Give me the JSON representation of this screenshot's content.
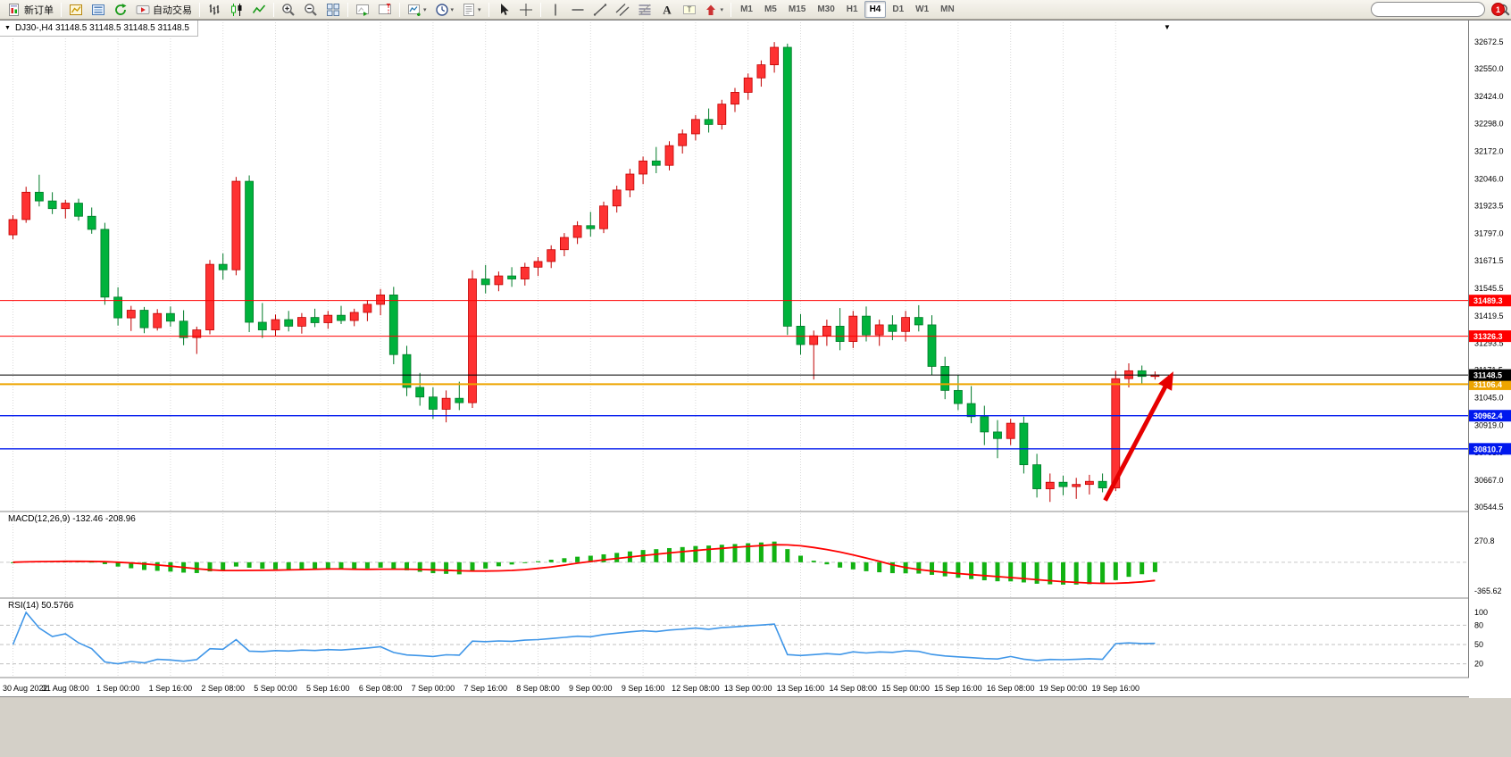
{
  "toolbar": {
    "groups": [
      {
        "items": [
          {
            "name": "new-order-button",
            "icon": "new-order",
            "label": "新订单"
          }
        ]
      },
      {
        "items": [
          {
            "name": "charts-button",
            "icon": "chart-window"
          },
          {
            "name": "market-watch-button",
            "icon": "market-watch"
          },
          {
            "name": "refresh-button",
            "icon": "refresh"
          },
          {
            "name": "auto-trading-button",
            "icon": "auto-trading",
            "label": "自动交易"
          }
        ]
      },
      {
        "items": [
          {
            "name": "bar-chart-button",
            "icon": "bar-chart"
          },
          {
            "name": "candlestick-chart-button",
            "icon": "candle-chart"
          },
          {
            "name": "line-chart-button",
            "icon": "line-chart"
          }
        ]
      },
      {
        "items": [
          {
            "name": "zoom-in-button",
            "icon": "zoom-in"
          },
          {
            "name": "zoom-out-button",
            "icon": "zoom-out"
          },
          {
            "name": "tile-wind​ows-button",
            "icon": "tile-windows"
          }
        ]
      },
      {
        "items": [
          {
            "name": "auto-scroll-button",
            "icon": "auto-scroll"
          },
          {
            "name": "chart-shift-button",
            "icon": "chart-shift"
          }
        ]
      },
      {
        "items": [
          {
            "name": "indicators-button",
            "icon": "indicators",
            "dropdown": true
          },
          {
            "name": "periods-button",
            "icon": "periods",
            "dropdown": true
          },
          {
            "name": "templates-button",
            "icon": "templates",
            "dropdown": true
          }
        ]
      },
      {
        "items": [
          {
            "name": "cursor-button",
            "icon": "cursor"
          },
          {
            "name": "crosshair-button",
            "icon": "crosshair"
          }
        ]
      },
      {
        "items": [
          {
            "name": "vertical-line-button",
            "icon": "vline"
          },
          {
            "name": "horizontal-line-button",
            "icon": "hline"
          },
          {
            "name": "trendline-button",
            "icon": "trendline"
          },
          {
            "name": "equidistant-channel-button",
            "icon": "channel"
          },
          {
            "name": "fibonacci-button",
            "icon": "fibonacci"
          },
          {
            "name": "text-button",
            "icon": "text"
          },
          {
            "name": "text-label-button",
            "icon": "text-label"
          },
          {
            "name": "arrows-button",
            "icon": "arrows",
            "dropdown": true
          }
        ]
      }
    ],
    "timeframes": [
      "M1",
      "M5",
      "M15",
      "M30",
      "H1",
      "H4",
      "D1",
      "W1",
      "MN"
    ],
    "active_timeframe": "H4",
    "notification_count": "1"
  },
  "chart": {
    "title": "DJ30-,H4 31148.5 31148.5 31148.5 31148.5",
    "collapse_icon": "▼",
    "menu_icon": "▼",
    "macd": {
      "label": "MACD(12,26,9) -132.46 -208.96"
    },
    "rsi": {
      "label": "RSI(14) 50.5766"
    },
    "colors": {
      "grid": "#d9d9d9",
      "up": "#fe3232",
      "up_stroke": "#c00000",
      "down": "#00b23c",
      "down_stroke": "#007a28",
      "macd_bar": "#12b212",
      "macd_signal": "#ff0000",
      "rsi_line": "#3f96e8",
      "axis_text": "#000000"
    }
  },
  "chart_data": {
    "type": "candlestick",
    "symbol": "DJ30-",
    "timeframe": "H4",
    "price_range": [
      30544.5,
      32672.5
    ],
    "y_axis_ticks": [
      "32672.5",
      "32550.0",
      "32424.0",
      "32298.0",
      "32172.0",
      "32046.0",
      "31923.5",
      "31797.0",
      "31671.5",
      "31545.5",
      "31419.5",
      "31293.5",
      "31171.5",
      "31045.0",
      "30919.0",
      "30793.0",
      "30667.0",
      "30544.5"
    ],
    "x_labels": [
      "30 Aug 2022",
      "31 Aug 08:00",
      "1 Sep 00:00",
      "1 Sep 16:00",
      "2 Sep 08:00",
      "5 Sep 00:00",
      "5 Sep 16:00",
      "6 Sep 08:00",
      "7 Sep 00:00",
      "7 Sep 16:00",
      "8 Sep 08:00",
      "9 Sep 00:00",
      "9 Sep 16:00",
      "12 Sep 08:00",
      "13 Sep 00:00",
      "13 Sep 16:00",
      "14 Sep 08:00",
      "15 Sep 00:00",
      "15 Sep 16:00",
      "16 Sep 08:00",
      "19 Sep 00:00",
      "19 Sep 16:00"
    ],
    "x_label_step": 4,
    "current_price": 31148.5,
    "current_price_label": "31148.5",
    "horizontal_lines": [
      {
        "label": "31489.3",
        "price": 31489.3,
        "color": "#ff0000",
        "width": 1
      },
      {
        "label": "31326.3",
        "price": 31326.3,
        "color": "#ff0000",
        "width": 1
      },
      {
        "label": "31106.4",
        "price": 31106.4,
        "color": "#eea500",
        "width": 2
      },
      {
        "label": "30962.4",
        "price": 30962.4,
        "color": "#0018ee",
        "width": 1.4
      },
      {
        "label": "30810.7",
        "price": 30810.7,
        "color": "#0018ee",
        "width": 1.4
      }
    ],
    "indicators": [
      {
        "type": "MACD",
        "params": "12,26,9",
        "display_values": "-132.46 -208.96",
        "axis": [
          "270.8",
          "-365.62"
        ]
      },
      {
        "type": "RSI",
        "params": "14",
        "display_value": "50.5766",
        "axis": [
          "100",
          "80",
          "50",
          "20"
        ],
        "levels": [
          80,
          50,
          20
        ]
      }
    ],
    "annotation_arrow": {
      "from_index": 83.2,
      "from_price": 30575,
      "to_index": 88.4,
      "to_price": 31165,
      "color": "#e60000"
    },
    "ohlc": [
      [
        31790,
        31880,
        31770,
        31860
      ],
      [
        31860,
        32010,
        31845,
        31985
      ],
      [
        31985,
        32065,
        31920,
        31945
      ],
      [
        31945,
        31985,
        31885,
        31910
      ],
      [
        31910,
        31950,
        31865,
        31935
      ],
      [
        31935,
        31955,
        31855,
        31875
      ],
      [
        31875,
        31915,
        31795,
        31815
      ],
      [
        31815,
        31845,
        31470,
        31505
      ],
      [
        31505,
        31550,
        31375,
        31410
      ],
      [
        31410,
        31465,
        31350,
        31445
      ],
      [
        31445,
        31460,
        31340,
        31365
      ],
      [
        31365,
        31450,
        31352,
        31430
      ],
      [
        31430,
        31462,
        31370,
        31395
      ],
      [
        31395,
        31445,
        31285,
        31320
      ],
      [
        31320,
        31370,
        31245,
        31355
      ],
      [
        31355,
        31675,
        31335,
        31655
      ],
      [
        31655,
        31705,
        31585,
        31630
      ],
      [
        31630,
        32055,
        31605,
        32035
      ],
      [
        32035,
        32062,
        31345,
        31390
      ],
      [
        31390,
        31478,
        31318,
        31355
      ],
      [
        31355,
        31425,
        31328,
        31402
      ],
      [
        31402,
        31442,
        31348,
        31372
      ],
      [
        31372,
        31432,
        31338,
        31412
      ],
      [
        31412,
        31452,
        31368,
        31388
      ],
      [
        31388,
        31442,
        31360,
        31422
      ],
      [
        31422,
        31465,
        31382,
        31398
      ],
      [
        31398,
        31452,
        31372,
        31435
      ],
      [
        31435,
        31492,
        31395,
        31472
      ],
      [
        31472,
        31542,
        31422,
        31515
      ],
      [
        31515,
        31552,
        31198,
        31242
      ],
      [
        31242,
        31282,
        31052,
        31092
      ],
      [
        31092,
        31158,
        31008,
        31048
      ],
      [
        31048,
        31092,
        30948,
        30992
      ],
      [
        30992,
        31078,
        30932,
        31042
      ],
      [
        31042,
        31118,
        30988,
        31022
      ],
      [
        31022,
        31628,
        30998,
        31588
      ],
      [
        31588,
        31652,
        31522,
        31562
      ],
      [
        31562,
        31622,
        31532,
        31602
      ],
      [
        31602,
        31642,
        31552,
        31588
      ],
      [
        31588,
        31662,
        31558,
        31642
      ],
      [
        31642,
        31688,
        31602,
        31668
      ],
      [
        31668,
        31742,
        31638,
        31722
      ],
      [
        31722,
        31798,
        31692,
        31778
      ],
      [
        31778,
        31852,
        31748,
        31832
      ],
      [
        31832,
        31895,
        31782,
        31818
      ],
      [
        31818,
        31942,
        31798,
        31922
      ],
      [
        31922,
        32015,
        31892,
        31995
      ],
      [
        31995,
        32092,
        31962,
        32068
      ],
      [
        32068,
        32148,
        32022,
        32128
      ],
      [
        32128,
        32192,
        32072,
        32108
      ],
      [
        32108,
        32218,
        32085,
        32198
      ],
      [
        32198,
        32272,
        32162,
        32252
      ],
      [
        32252,
        32338,
        32222,
        32318
      ],
      [
        32318,
        32368,
        32258,
        32295
      ],
      [
        32295,
        32408,
        32272,
        32388
      ],
      [
        32388,
        32462,
        32352,
        32442
      ],
      [
        32442,
        32528,
        32408,
        32508
      ],
      [
        32508,
        32588,
        32468,
        32568
      ],
      [
        32568,
        32672,
        32532,
        32648
      ],
      [
        32648,
        32665,
        31332,
        31372
      ],
      [
        31372,
        31428,
        31242,
        31288
      ],
      [
        31288,
        31352,
        31128,
        31328
      ],
      [
        31328,
        31402,
        31282,
        31372
      ],
      [
        31372,
        31455,
        31262,
        31302
      ],
      [
        31302,
        31442,
        31272,
        31418
      ],
      [
        31418,
        31462,
        31302,
        31332
      ],
      [
        31332,
        31402,
        31282,
        31378
      ],
      [
        31378,
        31422,
        31308,
        31348
      ],
      [
        31348,
        31442,
        31302,
        31412
      ],
      [
        31412,
        31468,
        31348,
        31378
      ],
      [
        31378,
        31422,
        31148,
        31188
      ],
      [
        31188,
        31232,
        31038,
        31078
      ],
      [
        31078,
        31148,
        30988,
        31018
      ],
      [
        31018,
        31098,
        30928,
        30958
      ],
      [
        30958,
        31008,
        30828,
        30888
      ],
      [
        30888,
        30942,
        30768,
        30858
      ],
      [
        30858,
        30948,
        30828,
        30928
      ],
      [
        30928,
        30958,
        30698,
        30738
      ],
      [
        30738,
        30788,
        30588,
        30628
      ],
      [
        30628,
        30698,
        30568,
        30658
      ],
      [
        30658,
        30688,
        30598,
        30638
      ],
      [
        30638,
        30678,
        30582,
        30648
      ],
      [
        30648,
        30692,
        30602,
        30662
      ],
      [
        30662,
        30698,
        30612,
        30632
      ],
      [
        30632,
        31168,
        30618,
        31132
      ],
      [
        31132,
        31202,
        31092,
        31168
      ],
      [
        31168,
        31192,
        31108,
        31142
      ],
      [
        31142,
        31165,
        31128,
        31148.5
      ]
    ]
  }
}
